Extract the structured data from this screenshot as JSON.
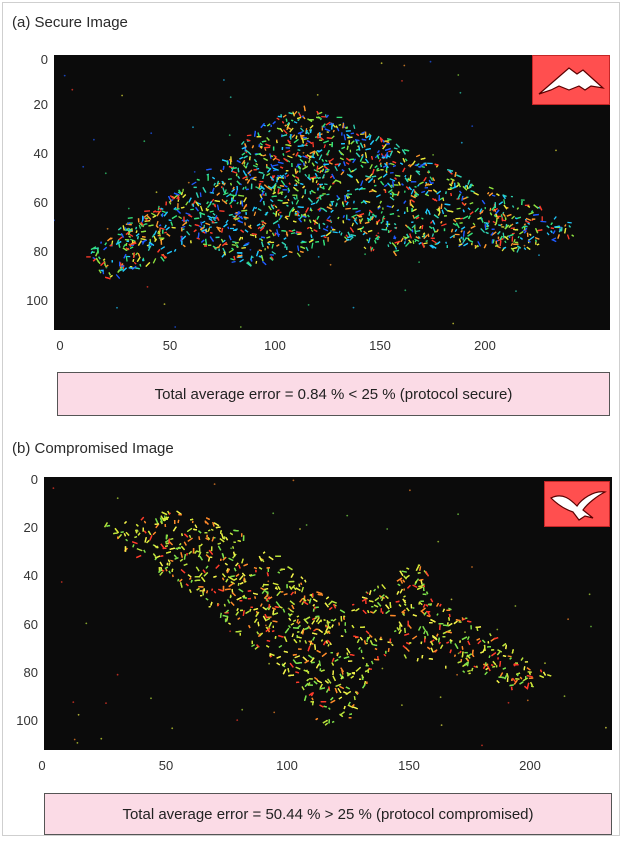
{
  "panels": [
    {
      "title": "(a) Secure Image",
      "x_ticks": [
        "0",
        "50",
        "100",
        "150",
        "200"
      ],
      "y_ticks": [
        "0",
        "20",
        "40",
        "60",
        "80",
        "100"
      ],
      "inset_icon": "stealth-bomber-icon",
      "result_text": "Total average error = 0.84 % < 25 % (protocol secure)"
    },
    {
      "title": "(b) Compromised Image",
      "x_ticks": [
        "0",
        "50",
        "100",
        "150",
        "200"
      ],
      "y_ticks": [
        "0",
        "20",
        "40",
        "60",
        "80",
        "100"
      ],
      "inset_icon": "flying-bird-icon",
      "result_text": "Total average error = 50.44 % > 25 % (protocol compromised)"
    }
  ],
  "colors": {
    "plot_background": "#0b0b0b",
    "inset_background": "#ff4f4f",
    "result_box_background": "#fbdbe6"
  }
}
